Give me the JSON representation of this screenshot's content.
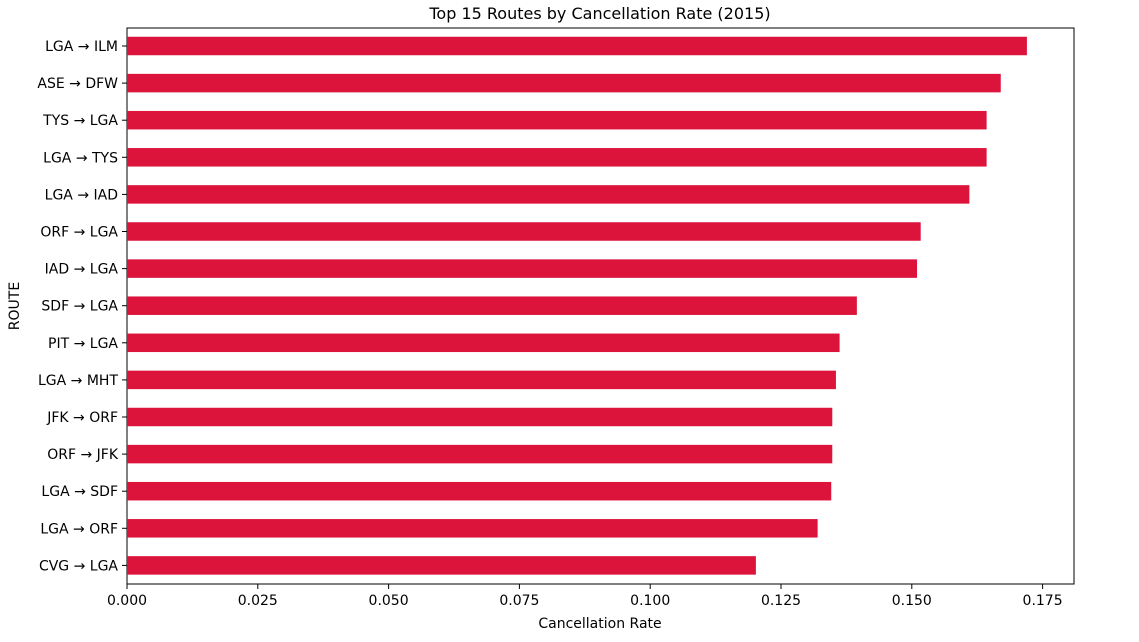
{
  "chart_data": {
    "type": "bar",
    "orientation": "horizontal",
    "title": "Top 15 Routes by Cancellation Rate (2015)",
    "xlabel": "Cancellation Rate",
    "ylabel": "ROUTE",
    "xlim": [
      0,
      0.181
    ],
    "xticks": [
      0.0,
      0.025,
      0.05,
      0.075,
      0.1,
      0.125,
      0.15,
      0.175
    ],
    "xtick_labels": [
      "0.000",
      "0.025",
      "0.050",
      "0.075",
      "0.100",
      "0.125",
      "0.150",
      "0.175"
    ],
    "grid": false,
    "bar_color": "#dc143c",
    "categories": [
      "LGA → ILM",
      "ASE → DFW",
      "TYS → LGA",
      "LGA → TYS",
      "LGA → IAD",
      "ORF → LGA",
      "IAD → LGA",
      "SDF → LGA",
      "PIT → LGA",
      "LGA → MHT",
      "JFK → ORF",
      "ORF → JFK",
      "LGA → SDF",
      "LGA → ORF",
      "CVG → LGA"
    ],
    "values": [
      0.172,
      0.167,
      0.1643,
      0.1643,
      0.161,
      0.1517,
      0.151,
      0.1395,
      0.1362,
      0.1355,
      0.1348,
      0.1348,
      0.1346,
      0.132,
      0.1202
    ]
  }
}
